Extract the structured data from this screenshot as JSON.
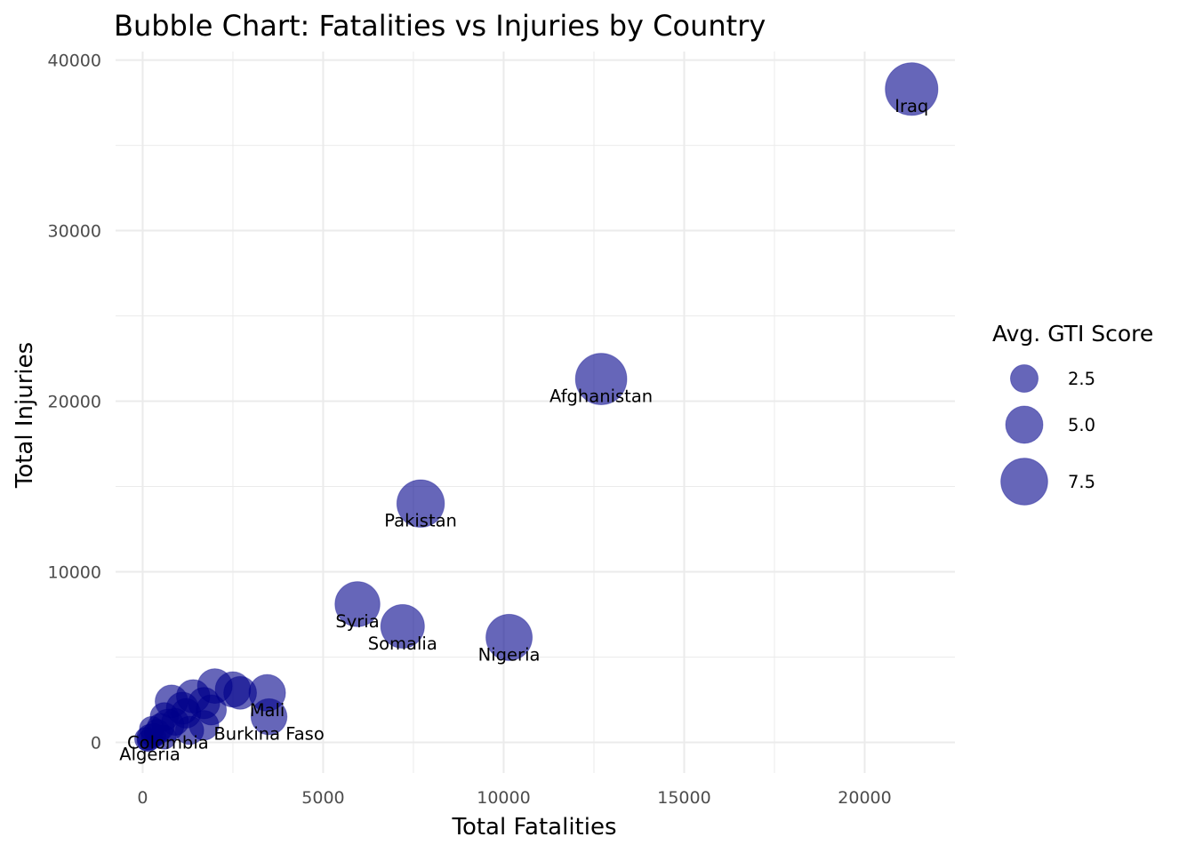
{
  "chart_data": {
    "type": "scatter",
    "title": "Bubble Chart: Fatalities vs Injuries by Country",
    "xlabel": "Total Fatalities",
    "ylabel": "Total Injuries",
    "xlim": [
      -750,
      22500
    ],
    "ylim": [
      -1800,
      40500
    ],
    "xticks": [
      0,
      5000,
      10000,
      15000,
      20000
    ],
    "xtick_labels": [
      "0",
      "5000",
      "10000",
      "15000",
      "20000"
    ],
    "yticks": [
      0,
      10000,
      20000,
      30000,
      40000
    ],
    "ytick_labels": [
      "0",
      "10000",
      "20000",
      "30000",
      "40000"
    ],
    "grid": true,
    "colors": {
      "bubble": "#00008B",
      "grid": "#ebebeb"
    },
    "legend": {
      "title": "Avg. GTI Score",
      "position": "right",
      "entries": [
        {
          "value": 2.5,
          "label": "2.5"
        },
        {
          "value": 5.0,
          "label": "5.0"
        },
        {
          "value": 7.5,
          "label": "7.5"
        }
      ]
    },
    "labeled_points": [
      {
        "label": "Iraq",
        "x": 21300,
        "y": 38300,
        "size": 9.0
      },
      {
        "label": "Afghanistan",
        "x": 12700,
        "y": 21300,
        "size": 8.8
      },
      {
        "label": "Pakistan",
        "x": 7700,
        "y": 14000,
        "size": 8.2
      },
      {
        "label": "Syria",
        "x": 5950,
        "y": 8100,
        "size": 7.8
      },
      {
        "label": "Somalia",
        "x": 7200,
        "y": 6800,
        "size": 7.6
      },
      {
        "label": "Nigeria",
        "x": 10150,
        "y": 6150,
        "size": 8.0
      },
      {
        "label": "Mali",
        "x": 3450,
        "y": 2900,
        "size": 6.5
      },
      {
        "label": "Burkina Faso",
        "x": 3500,
        "y": 1500,
        "size": 6.4
      },
      {
        "label": "Colombia",
        "x": 700,
        "y": 1000,
        "size": 5.8
      },
      {
        "label": "Algeria",
        "x": 200,
        "y": 300,
        "size": 4.8
      }
    ],
    "unlabeled_points": [
      {
        "x": 2500,
        "y": 3100,
        "size": 6.3
      },
      {
        "x": 2000,
        "y": 3300,
        "size": 6.2
      },
      {
        "x": 2700,
        "y": 2900,
        "size": 5.9
      },
      {
        "x": 1400,
        "y": 2700,
        "size": 6.0
      },
      {
        "x": 800,
        "y": 2400,
        "size": 5.9
      },
      {
        "x": 1700,
        "y": 2300,
        "size": 5.7
      },
      {
        "x": 1100,
        "y": 2000,
        "size": 5.8
      },
      {
        "x": 1900,
        "y": 1900,
        "size": 5.5
      },
      {
        "x": 1200,
        "y": 1700,
        "size": 5.4
      },
      {
        "x": 600,
        "y": 1500,
        "size": 5.2
      },
      {
        "x": 1700,
        "y": 1000,
        "size": 5.4
      },
      {
        "x": 1300,
        "y": 700,
        "size": 5.2
      },
      {
        "x": 900,
        "y": 1200,
        "size": 5.0
      },
      {
        "x": 500,
        "y": 900,
        "size": 5.0
      },
      {
        "x": 400,
        "y": 600,
        "size": 4.8
      },
      {
        "x": 300,
        "y": 400,
        "size": 4.6
      },
      {
        "x": 100,
        "y": 200,
        "size": 4.4
      },
      {
        "x": 600,
        "y": 300,
        "size": 4.5
      },
      {
        "x": 250,
        "y": 800,
        "size": 4.6
      },
      {
        "x": 150,
        "y": 100,
        "size": 4.2
      }
    ]
  }
}
